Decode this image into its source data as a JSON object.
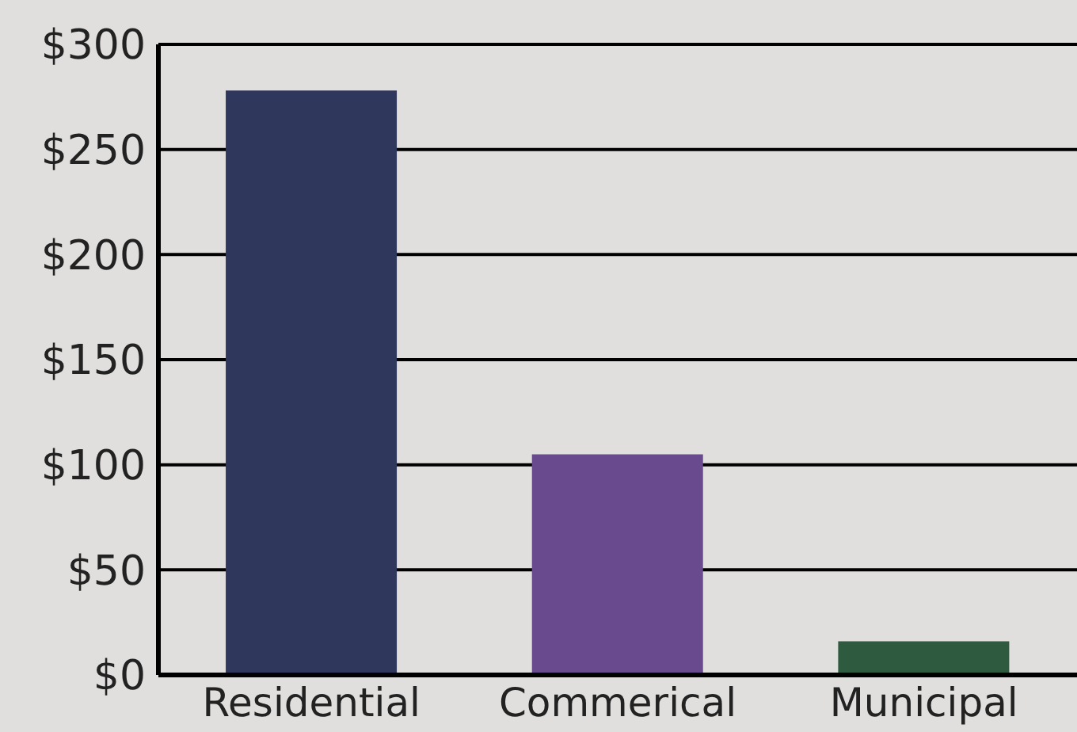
{
  "chart_data": {
    "type": "bar",
    "categories": [
      "Residential",
      "Commerical",
      "Municipal"
    ],
    "values": [
      278,
      105,
      16
    ],
    "colors": [
      "#30375d",
      "#6a4a8e",
      "#2e5b3f"
    ],
    "ylim": [
      0,
      300
    ],
    "yticks": [
      {
        "value": 0,
        "label": "$0"
      },
      {
        "value": 50,
        "label": "$50"
      },
      {
        "value": 100,
        "label": "$100"
      },
      {
        "value": 150,
        "label": "$150"
      },
      {
        "value": 200,
        "label": "$200"
      },
      {
        "value": 250,
        "label": "$250"
      },
      {
        "value": 300,
        "label": "$300"
      }
    ],
    "grid": "y"
  }
}
